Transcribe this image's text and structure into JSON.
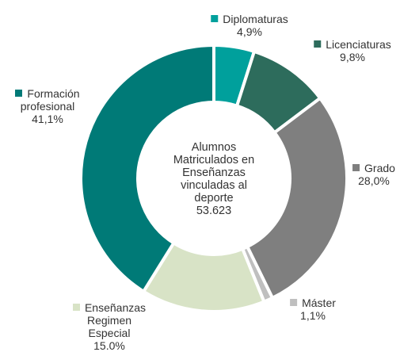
{
  "chart_data": {
    "type": "donut",
    "categories": [
      "Diplomaturas",
      "Licenciaturas",
      "Grado",
      "Máster",
      "Enseñanzas Regimen Especial",
      "Formación profesional"
    ],
    "values": [
      4.9,
      9.8,
      28.0,
      1.1,
      15.0,
      41.1
    ],
    "value_labels": [
      "4,9%",
      "9,8%",
      "28,0%",
      "1,1%",
      "15.0%",
      "41,1%"
    ],
    "colors": [
      "#00a09c",
      "#2d6c5c",
      "#7f7f7f",
      "#bfbfbf",
      "#d8e3c6",
      "#007a77"
    ],
    "center_text": [
      "Alumnos",
      "Matriculados en",
      "Enseñanzas",
      "vinculadas al",
      "deporte",
      "53.623"
    ]
  }
}
